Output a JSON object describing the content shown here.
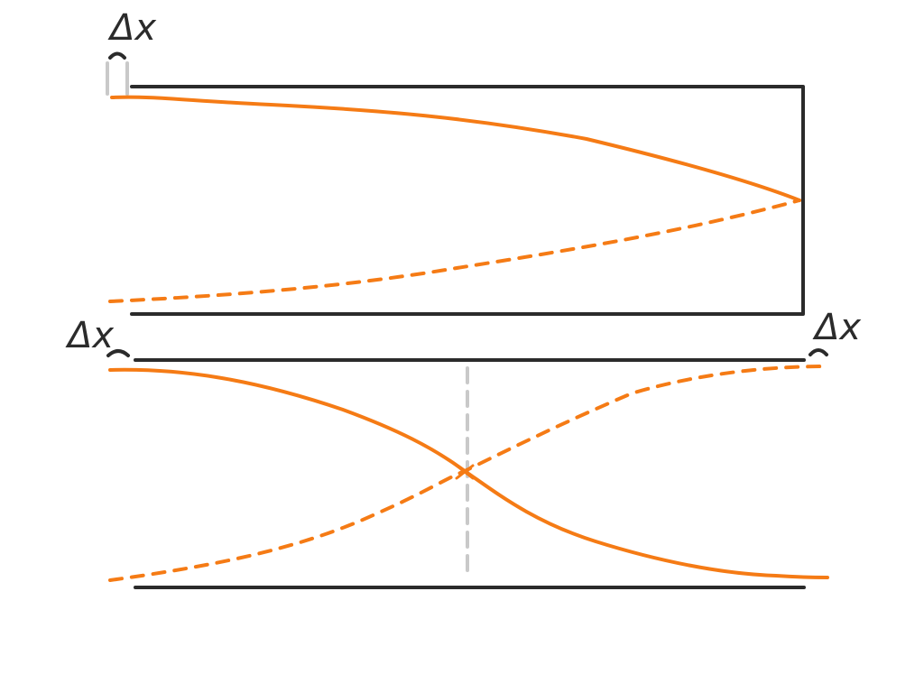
{
  "labels": {
    "top_left_delta": "Δx",
    "bottom_left_delta": "Δx",
    "bottom_right_delta": "Δx"
  },
  "colors": {
    "ink": "#2b2b2b",
    "curve": "#f57b15",
    "guide": "#c9c9c9",
    "background": "#ffffff"
  }
}
